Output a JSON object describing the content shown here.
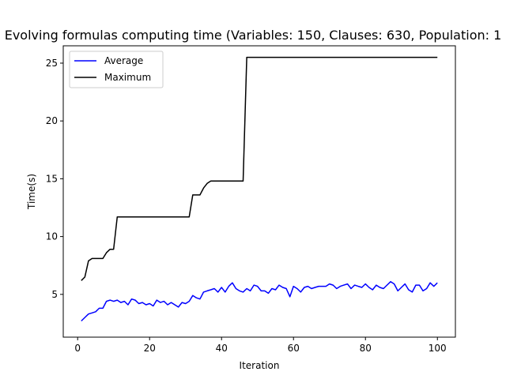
{
  "chart_data": {
    "type": "line",
    "title": "Evolving formulas computing time (Variables: 150, Clauses: 630, Population: 1",
    "xlabel": "Iteration",
    "ylabel": "Time(s)",
    "xlim": [
      -4,
      105
    ],
    "ylim": [
      1.3,
      26.5
    ],
    "xticks": [
      0,
      20,
      40,
      60,
      80,
      100
    ],
    "yticks": [
      5,
      10,
      15,
      20,
      25
    ],
    "grid": false,
    "legend_position": "top-left",
    "series": [
      {
        "name": "Average",
        "color": "#0000ff",
        "x": [
          1,
          2,
          3,
          4,
          5,
          6,
          7,
          8,
          9,
          10,
          11,
          12,
          13,
          14,
          15,
          16,
          17,
          18,
          19,
          20,
          21,
          22,
          23,
          24,
          25,
          26,
          27,
          28,
          29,
          30,
          31,
          32,
          33,
          34,
          35,
          36,
          37,
          38,
          39,
          40,
          41,
          42,
          43,
          44,
          45,
          46,
          47,
          48,
          49,
          50,
          51,
          52,
          53,
          54,
          55,
          56,
          57,
          58,
          59,
          60,
          61,
          62,
          63,
          64,
          65,
          66,
          67,
          68,
          69,
          70,
          71,
          72,
          73,
          74,
          75,
          76,
          77,
          78,
          79,
          80,
          81,
          82,
          83,
          84,
          85,
          86,
          87,
          88,
          89,
          90,
          91,
          92,
          93,
          94,
          95,
          96,
          97,
          98,
          99,
          100
        ],
        "values": [
          2.7,
          3.0,
          3.3,
          3.4,
          3.5,
          3.8,
          3.8,
          4.4,
          4.5,
          4.4,
          4.5,
          4.3,
          4.4,
          4.1,
          4.6,
          4.5,
          4.2,
          4.3,
          4.1,
          4.2,
          4.0,
          4.5,
          4.3,
          4.4,
          4.1,
          4.3,
          4.1,
          3.9,
          4.3,
          4.2,
          4.4,
          4.9,
          4.7,
          4.6,
          5.2,
          5.3,
          5.4,
          5.5,
          5.2,
          5.6,
          5.2,
          5.7,
          6.0,
          5.5,
          5.3,
          5.2,
          5.5,
          5.3,
          5.8,
          5.7,
          5.3,
          5.3,
          5.1,
          5.5,
          5.4,
          5.8,
          5.6,
          5.5,
          4.8,
          5.7,
          5.5,
          5.2,
          5.6,
          5.7,
          5.5,
          5.6,
          5.7,
          5.7,
          5.7,
          5.9,
          5.8,
          5.5,
          5.7,
          5.8,
          5.9,
          5.5,
          5.8,
          5.7,
          5.6,
          5.9,
          5.6,
          5.4,
          5.8,
          5.6,
          5.5,
          5.8,
          6.1,
          5.9,
          5.3,
          5.6,
          5.9,
          5.4,
          5.2,
          5.8,
          5.8,
          5.3,
          5.5,
          6.0,
          5.7,
          6.0
        ]
      },
      {
        "name": "Maximum",
        "color": "#000000",
        "x": [
          1,
          2,
          3,
          4,
          5,
          6,
          7,
          8,
          9,
          10,
          11,
          12,
          13,
          14,
          15,
          16,
          17,
          18,
          19,
          20,
          21,
          22,
          23,
          24,
          25,
          26,
          27,
          28,
          29,
          30,
          31,
          32,
          33,
          34,
          35,
          36,
          37,
          38,
          39,
          40,
          41,
          42,
          43,
          44,
          45,
          46,
          47,
          48,
          49,
          50,
          51,
          52,
          53,
          54,
          55,
          56,
          57,
          58,
          59,
          60,
          61,
          62,
          63,
          64,
          65,
          66,
          67,
          68,
          69,
          70,
          71,
          72,
          73,
          74,
          75,
          76,
          77,
          78,
          79,
          80,
          81,
          82,
          83,
          84,
          85,
          86,
          87,
          88,
          89,
          90,
          91,
          92,
          93,
          94,
          95,
          96,
          97,
          98,
          99,
          100
        ],
        "values": [
          6.2,
          6.5,
          7.9,
          8.1,
          8.1,
          8.1,
          8.1,
          8.6,
          8.9,
          8.9,
          11.7,
          11.7,
          11.7,
          11.7,
          11.7,
          11.7,
          11.7,
          11.7,
          11.7,
          11.7,
          11.7,
          11.7,
          11.7,
          11.7,
          11.7,
          11.7,
          11.7,
          11.7,
          11.7,
          11.7,
          11.7,
          13.6,
          13.6,
          13.6,
          14.2,
          14.6,
          14.8,
          14.8,
          14.8,
          14.8,
          14.8,
          14.8,
          14.8,
          14.8,
          14.8,
          14.8,
          25.5,
          25.5,
          25.5,
          25.5,
          25.5,
          25.5,
          25.5,
          25.5,
          25.5,
          25.5,
          25.5,
          25.5,
          25.5,
          25.5,
          25.5,
          25.5,
          25.5,
          25.5,
          25.5,
          25.5,
          25.5,
          25.5,
          25.5,
          25.5,
          25.5,
          25.5,
          25.5,
          25.5,
          25.5,
          25.5,
          25.5,
          25.5,
          25.5,
          25.5,
          25.5,
          25.5,
          25.5,
          25.5,
          25.5,
          25.5,
          25.5,
          25.5,
          25.5,
          25.5,
          25.5,
          25.5,
          25.5,
          25.5,
          25.5,
          25.5,
          25.5,
          25.5,
          25.5,
          25.5
        ]
      }
    ]
  }
}
